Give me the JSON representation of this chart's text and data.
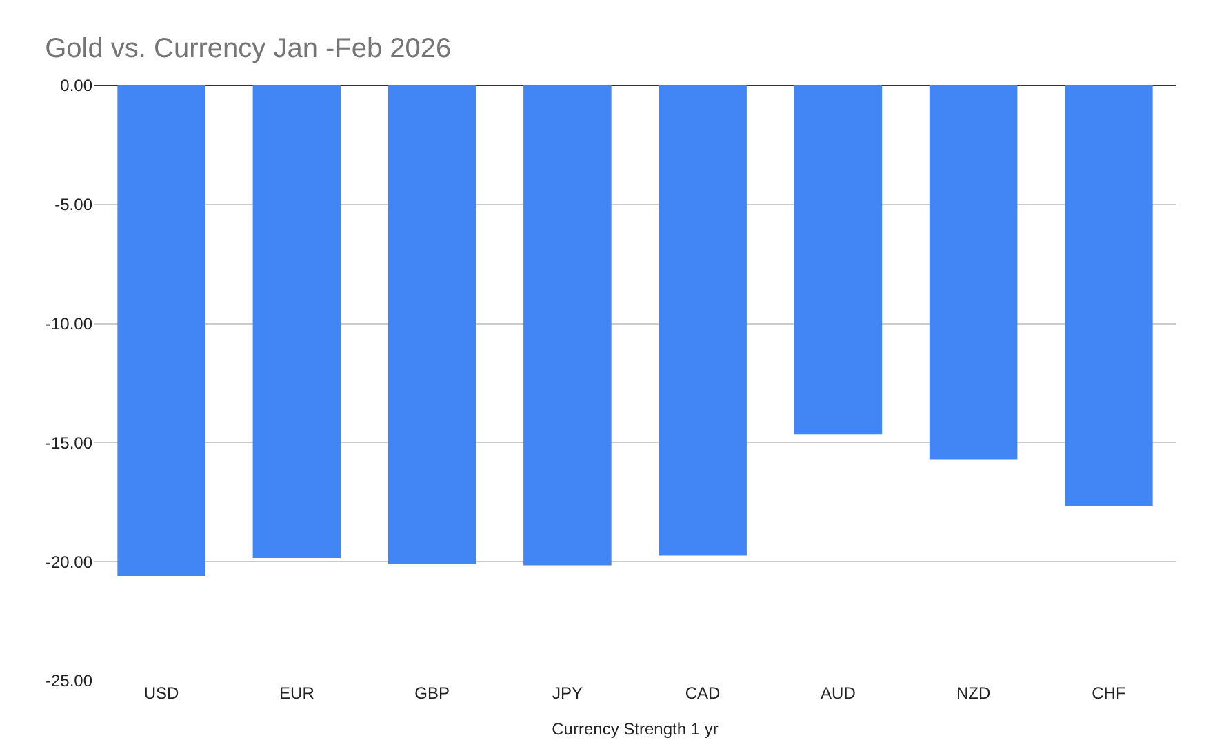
{
  "chart_data": {
    "type": "bar",
    "title": "Gold vs. Currency Jan -Feb 2026",
    "xlabel": "Currency Strength 1 yr",
    "categories": [
      "USD",
      "EUR",
      "GBP",
      "JPY",
      "CAD",
      "AUD",
      "NZD",
      "CHF"
    ],
    "values": [
      -20.6,
      -19.85,
      -20.1,
      -20.15,
      -19.75,
      -14.65,
      -15.7,
      -17.65
    ],
    "color": "#4285f4",
    "ylim": [
      -25,
      0
    ],
    "yticks": [
      {
        "value": 0,
        "label": "0.00"
      },
      {
        "value": -5,
        "label": "-5.00"
      },
      {
        "value": -10,
        "label": "-10.00"
      },
      {
        "value": -15,
        "label": "-15.00"
      },
      {
        "value": -20,
        "label": "-20.00"
      },
      {
        "value": -25,
        "label": "-25.00"
      }
    ],
    "grid": "y"
  }
}
